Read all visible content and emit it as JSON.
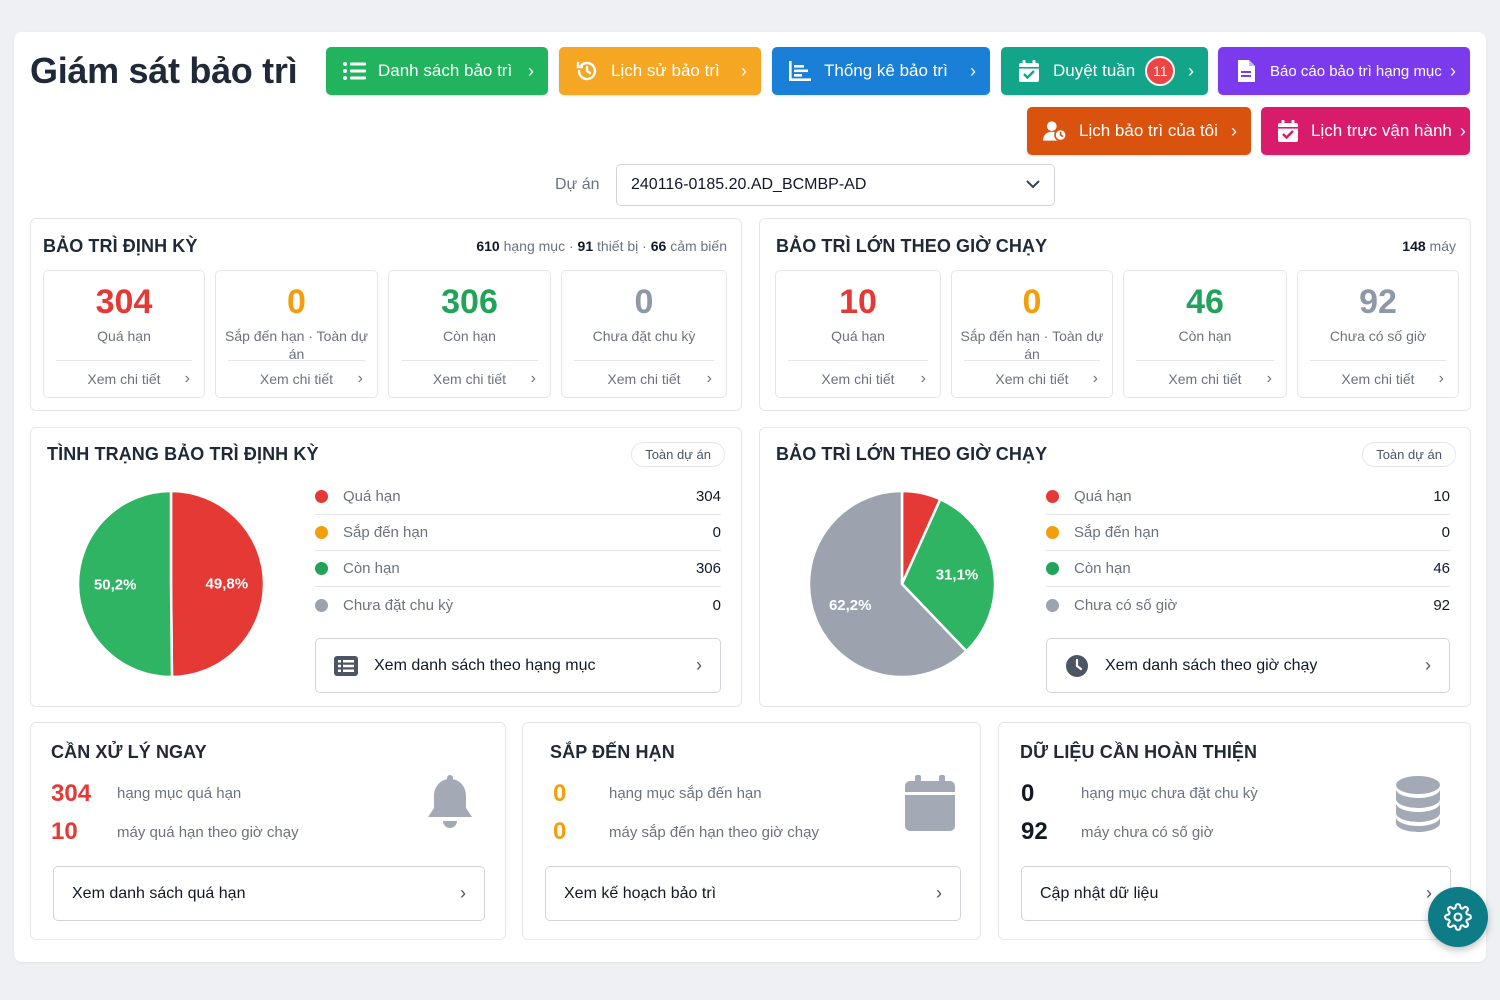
{
  "page_title": "Giám sát bảo trì",
  "nav_buttons": [
    {
      "label": "Danh sách bảo trì",
      "color": "#22b35e",
      "icon": "list-icon"
    },
    {
      "label": "Lịch sử bảo trì",
      "color": "#f5a623",
      "icon": "history-icon"
    },
    {
      "label": "Thống kê bảo trì",
      "color": "#1a7fd6",
      "icon": "chart-icon"
    },
    {
      "label": "Duyệt tuần",
      "color": "#12a58a",
      "icon": "calendar-check-icon",
      "badge": "11"
    },
    {
      "label": "Báo cáo bảo trì hạng mục",
      "color": "#7c3aed",
      "icon": "document-icon"
    },
    {
      "label": "Lịch bảo trì của tôi",
      "color": "#d9530f",
      "icon": "user-clock-icon"
    },
    {
      "label": "Lịch trực vận hành",
      "color": "#d81b6b",
      "icon": "calendar-check-icon"
    }
  ],
  "project": {
    "label": "Dự án",
    "value": "240116-0185.20.AD_BCMBP-AD"
  },
  "periodic": {
    "title": "BẢO TRÌ ĐỊNH KỲ",
    "meta": {
      "items": "610",
      "items_unit": "hạng mục ·",
      "devices": "91",
      "devices_unit": "thiết bị ·",
      "sensors": "66",
      "sensors_unit": "cảm biến"
    },
    "cards": [
      {
        "value": "304",
        "label": "Quá hạn",
        "color": "#e53935",
        "link": "Xem chi tiết"
      },
      {
        "value": "0",
        "label": "Sắp đến hạn · Toàn dự án",
        "color": "#f59e0b",
        "link": "Xem chi tiết"
      },
      {
        "value": "306",
        "label": "Còn hạn",
        "color": "#22a35a",
        "link": "Xem chi tiết"
      },
      {
        "value": "0",
        "label": "Chưa đặt chu kỳ",
        "color": "#8e98a8",
        "link": "Xem chi tiết"
      }
    ]
  },
  "major": {
    "title": "BẢO TRÌ LỚN THEO GIỜ CHẠY",
    "meta_count": "148",
    "meta_unit": "máy",
    "cards": [
      {
        "value": "10",
        "label": "Quá hạn",
        "color": "#e53935",
        "link": "Xem chi tiết"
      },
      {
        "value": "0",
        "label": "Sắp đến hạn · Toàn dự án",
        "color": "#f59e0b",
        "link": "Xem chi tiết"
      },
      {
        "value": "46",
        "label": "Còn hạn",
        "color": "#22a35a",
        "link": "Xem chi tiết"
      },
      {
        "value": "92",
        "label": "Chưa có số giờ",
        "color": "#8e98a8",
        "link": "Xem chi tiết"
      }
    ]
  },
  "status_periodic": {
    "title": "TÌNH TRẠNG BẢO TRÌ ĐỊNH KỲ",
    "scope": "Toàn dự án",
    "legend": [
      {
        "label": "Quá hạn",
        "value": "304",
        "color": "#e53935"
      },
      {
        "label": "Sắp đến hạn",
        "value": "0",
        "color": "#f59e0b"
      },
      {
        "label": "Còn hạn",
        "value": "306",
        "color": "#22a35a"
      },
      {
        "label": "Chưa đặt chu kỳ",
        "value": "0",
        "color": "#9ca3af"
      }
    ],
    "button": "Xem danh sách theo hạng mục"
  },
  "status_major": {
    "title": "BẢO TRÌ LỚN THEO GIỜ CHẠY",
    "scope": "Toàn dự án",
    "legend": [
      {
        "label": "Quá hạn",
        "value": "10",
        "color": "#e53935"
      },
      {
        "label": "Sắp đến hạn",
        "value": "0",
        "color": "#f59e0b"
      },
      {
        "label": "Còn hạn",
        "value": "46",
        "color": "#22a35a"
      },
      {
        "label": "Chưa có số giờ",
        "value": "92",
        "color": "#9ca3af"
      }
    ],
    "button": "Xem danh sách theo giờ chạy"
  },
  "chart_data": [
    {
      "type": "pie",
      "categories": [
        "Quá hạn",
        "Sắp đến hạn",
        "Còn hạn",
        "Chưa đặt chu kỳ"
      ],
      "values": [
        304,
        0,
        306,
        0
      ],
      "colors": [
        "#e53935",
        "#f59e0b",
        "#2fb463",
        "#9ca3af"
      ],
      "data_labels": [
        "49,8%",
        "",
        "50,2%",
        ""
      ]
    },
    {
      "type": "pie",
      "categories": [
        "Quá hạn",
        "Sắp đến hạn",
        "Còn hạn",
        "Chưa có số giờ"
      ],
      "values": [
        10,
        0,
        46,
        92
      ],
      "colors": [
        "#e53935",
        "#f59e0b",
        "#2fb463",
        "#9ca3af"
      ],
      "data_labels": [
        "",
        "",
        "31,1%",
        "62,2%"
      ]
    }
  ],
  "urgent": {
    "title": "CẦN XỬ LÝ NGAY",
    "rows": [
      {
        "value": "304",
        "text": "hạng mục quá hạn",
        "color": "#e53935"
      },
      {
        "value": "10",
        "text": "máy quá hạn theo giờ chạy",
        "color": "#e53935"
      }
    ],
    "icon": "bell-icon",
    "button": "Xem danh sách quá hạn"
  },
  "upcoming": {
    "title": "SẮP ĐẾN HẠN",
    "rows": [
      {
        "value": "0",
        "text": "hạng mục sắp đến hạn",
        "color": "#f59e0b"
      },
      {
        "value": "0",
        "text": "máy sắp đến hạn theo giờ chạy",
        "color": "#f59e0b"
      }
    ],
    "icon": "calendar-icon",
    "button": "Xem kế hoạch bảo trì"
  },
  "data_incomplete": {
    "title": "DỮ LIỆU CẦN HOÀN THIỆN",
    "rows": [
      {
        "value": "0",
        "text": "hạng mục chưa đặt chu kỳ",
        "color": "#111827"
      },
      {
        "value": "92",
        "text": "máy chưa có số giờ",
        "color": "#111827"
      }
    ],
    "icon": "database-icon",
    "button": "Cập nhật dữ liệu"
  },
  "fab_icon": "gear-icon"
}
